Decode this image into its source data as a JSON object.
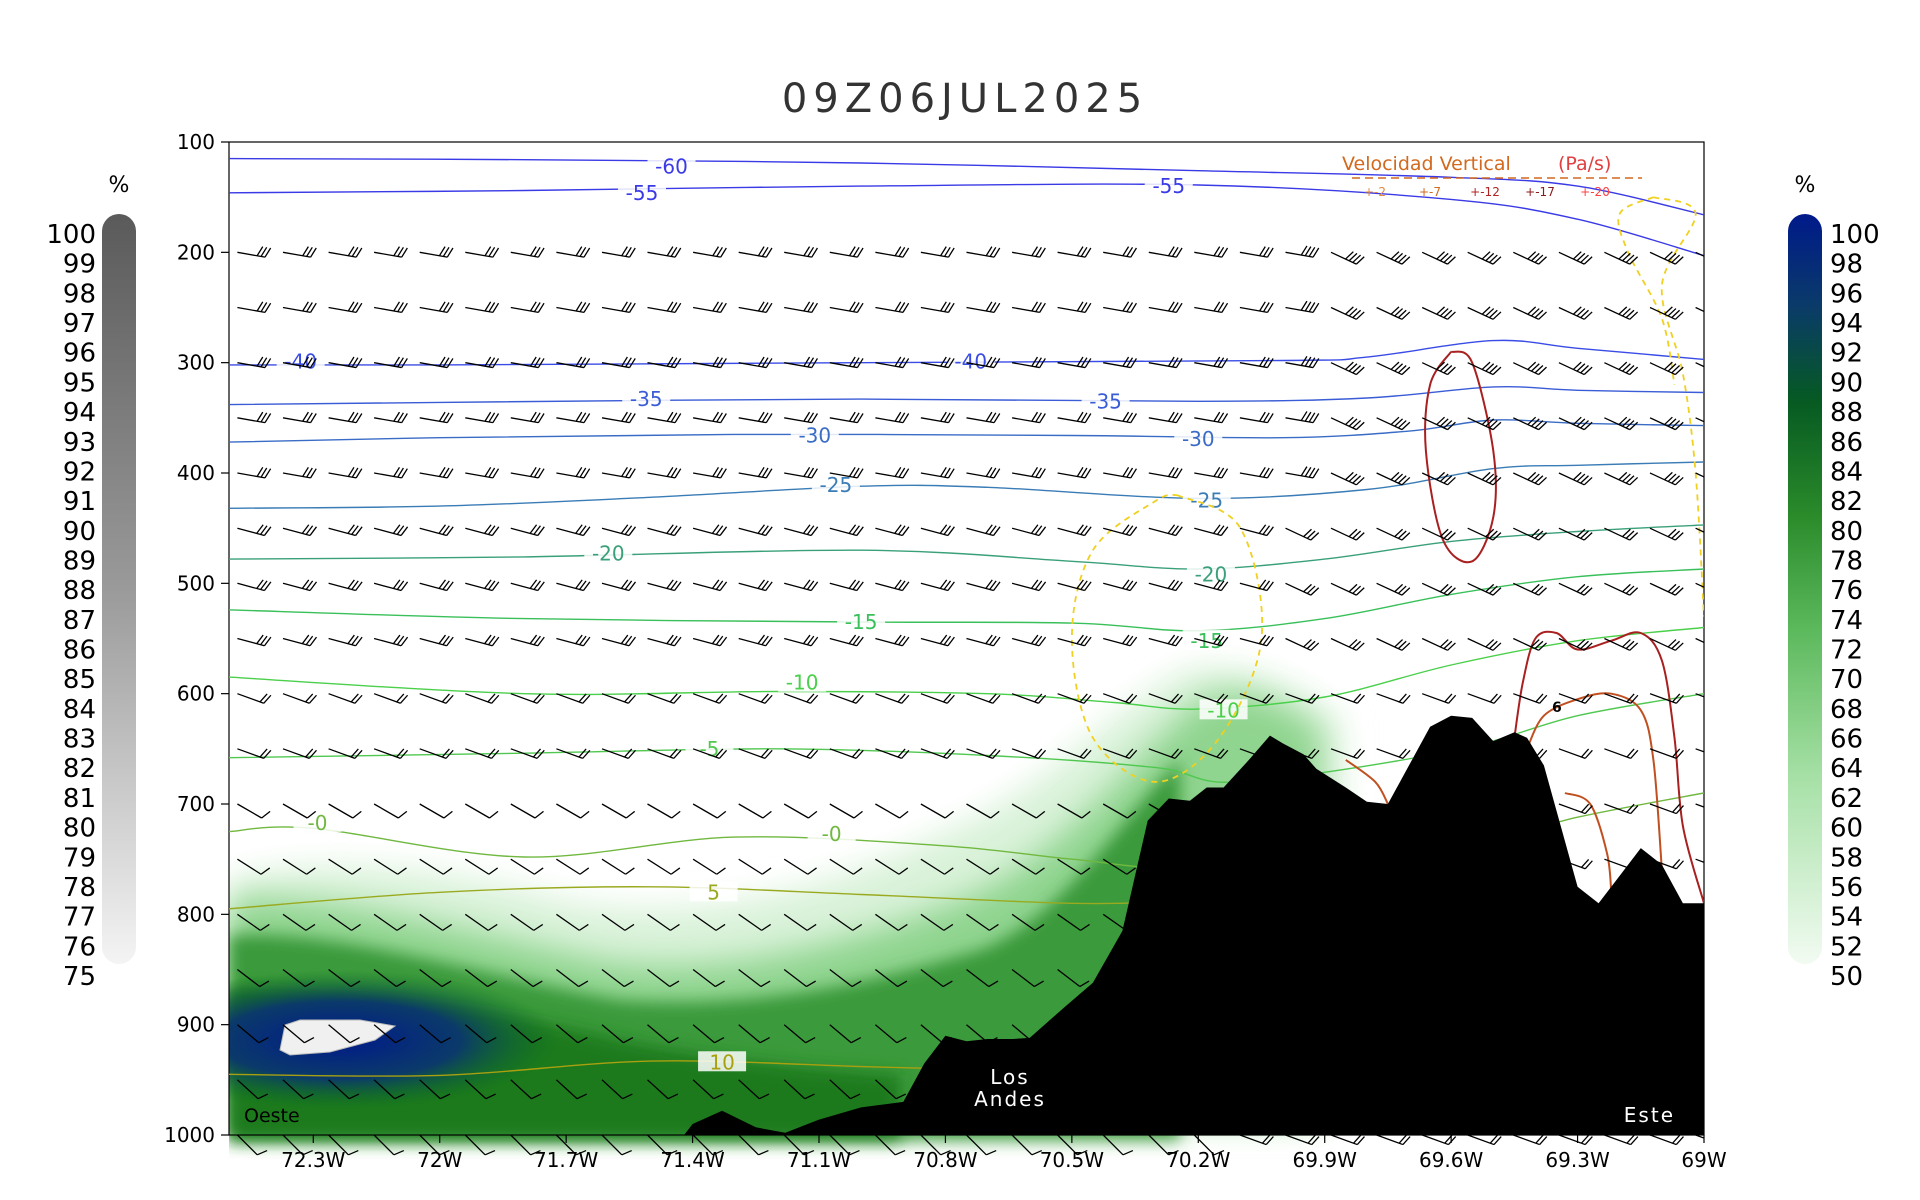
{
  "chart_data": {
    "type": "cross-section",
    "title": "09Z06JUL2025",
    "y_axis": {
      "ticks": [
        "100",
        "200",
        "300",
        "400",
        "500",
        "600",
        "700",
        "800",
        "900",
        "1000"
      ],
      "range": [
        100,
        1000
      ],
      "inverted": true
    },
    "x_axis": {
      "ticks": [
        "72.3W",
        "72W",
        "71.7W",
        "71.4W",
        "71.1W",
        "70.8W",
        "70.5W",
        "70.2W",
        "69.9W",
        "69.6W",
        "69.3W",
        "69W"
      ],
      "range": [
        -72.5,
        -69
      ]
    },
    "left_colorbar": {
      "unit": "%",
      "labels": [
        "100",
        "99",
        "98",
        "97",
        "96",
        "95",
        "94",
        "93",
        "92",
        "91",
        "90",
        "89",
        "88",
        "87",
        "86",
        "85",
        "84",
        "83",
        "82",
        "81",
        "80",
        "79",
        "78",
        "77",
        "76",
        "75"
      ]
    },
    "right_colorbar": {
      "unit": "%",
      "labels": [
        "100",
        "98",
        "96",
        "94",
        "92",
        "90",
        "88",
        "86",
        "84",
        "82",
        "80",
        "78",
        "76",
        "74",
        "72",
        "70",
        "68",
        "66",
        "64",
        "62",
        "60",
        "58",
        "56",
        "54",
        "52",
        "50"
      ]
    },
    "legend": {
      "title": "Velocidad Vertical",
      "unit": "(Pa/s)",
      "entries": [
        "+-2",
        "+-7",
        "+-12",
        "+-17",
        "+-20"
      ],
      "colors": [
        "#e08a40",
        "#d2691e",
        "#b22222",
        "#8b1a1a",
        "#ff4040"
      ]
    },
    "temperature_isotherms": [
      {
        "label": "-60",
        "color": "#3a3ae6",
        "points": [
          [
            -72.5,
            115
          ],
          [
            -71.8,
            116
          ],
          [
            -71.0,
            119
          ],
          [
            -70.2,
            126
          ],
          [
            -69.6,
            132
          ],
          [
            -69.3,
            140
          ],
          [
            -69.0,
            166
          ]
        ],
        "labels_at": [
          [
            -71.45,
            123
          ]
        ]
      },
      {
        "label": "-55",
        "color": "#3a3ae6",
        "points": [
          [
            -72.5,
            146
          ],
          [
            -71.8,
            144
          ],
          [
            -71.0,
            140
          ],
          [
            -70.2,
            139
          ],
          [
            -69.6,
            152
          ],
          [
            -69.3,
            170
          ],
          [
            -69.0,
            203
          ]
        ],
        "labels_at": [
          [
            -71.52,
            147
          ],
          [
            -70.27,
            141
          ]
        ]
      },
      {
        "label": "-40",
        "color": "#3a4ce6",
        "points": [
          [
            -72.5,
            302
          ],
          [
            -72.0,
            302
          ],
          [
            -71.0,
            300
          ],
          [
            -70.0,
            298
          ],
          [
            -69.8,
            295
          ],
          [
            -69.5,
            280
          ],
          [
            -69.3,
            287
          ],
          [
            -69.0,
            297
          ]
        ],
        "labels_at": [
          [
            -72.33,
            300
          ],
          [
            -70.74,
            300
          ]
        ]
      },
      {
        "label": "-35",
        "color": "#3a5cd6",
        "points": [
          [
            -72.5,
            338
          ],
          [
            -72.0,
            336
          ],
          [
            -71.0,
            333
          ],
          [
            -70.2,
            335
          ],
          [
            -69.8,
            332
          ],
          [
            -69.5,
            322
          ],
          [
            -69.3,
            325
          ],
          [
            -69.0,
            327
          ]
        ],
        "labels_at": [
          [
            -71.51,
            334
          ],
          [
            -70.42,
            336
          ]
        ]
      },
      {
        "label": "-30",
        "color": "#3a6cc6",
        "points": [
          [
            -72.5,
            372
          ],
          [
            -72.0,
            368
          ],
          [
            -71.3,
            365
          ],
          [
            -70.5,
            366
          ],
          [
            -70.0,
            368
          ],
          [
            -69.7,
            362
          ],
          [
            -69.5,
            352
          ],
          [
            -69.3,
            355
          ],
          [
            -69.0,
            357
          ]
        ],
        "labels_at": [
          [
            -71.11,
            367
          ],
          [
            -70.2,
            370
          ]
        ]
      },
      {
        "label": "-25",
        "color": "#3a7cb6",
        "points": [
          [
            -72.5,
            432
          ],
          [
            -72.0,
            430
          ],
          [
            -71.5,
            422
          ],
          [
            -71.0,
            412
          ],
          [
            -70.7,
            413
          ],
          [
            -70.2,
            423
          ],
          [
            -69.8,
            415
          ],
          [
            -69.5,
            396
          ],
          [
            -69.3,
            393
          ],
          [
            -69.0,
            390
          ]
        ],
        "labels_at": [
          [
            -71.06,
            412
          ],
          [
            -70.18,
            426
          ]
        ]
      },
      {
        "label": "-20",
        "color": "#3aa07a",
        "points": [
          [
            -72.5,
            478
          ],
          [
            -71.8,
            476
          ],
          [
            -71.0,
            470
          ],
          [
            -70.5,
            480
          ],
          [
            -70.2,
            487
          ],
          [
            -69.9,
            478
          ],
          [
            -69.6,
            462
          ],
          [
            -69.3,
            453
          ],
          [
            -69.0,
            447
          ]
        ],
        "labels_at": [
          [
            -71.6,
            474
          ],
          [
            -70.17,
            493
          ]
        ]
      },
      {
        "label": "-15",
        "color": "#3ac05a",
        "points": [
          [
            -72.5,
            524
          ],
          [
            -71.8,
            532
          ],
          [
            -71.0,
            535
          ],
          [
            -70.5,
            536
          ],
          [
            -70.2,
            543
          ],
          [
            -69.9,
            532
          ],
          [
            -69.6,
            510
          ],
          [
            -69.3,
            494
          ],
          [
            -69.0,
            487
          ]
        ],
        "labels_at": [
          [
            -71.0,
            536
          ],
          [
            -70.18,
            553
          ]
        ]
      },
      {
        "label": "-10",
        "color": "#4ad04a",
        "points": [
          [
            -72.5,
            585
          ],
          [
            -71.8,
            600
          ],
          [
            -71.2,
            598
          ],
          [
            -70.7,
            600
          ],
          [
            -70.4,
            608
          ],
          [
            -70.2,
            614
          ],
          [
            -69.9,
            603
          ],
          [
            -69.6,
            574
          ],
          [
            -69.3,
            552
          ],
          [
            -69.0,
            540
          ]
        ],
        "labels_at": [
          [
            -71.14,
            591
          ],
          [
            -70.14,
            616
          ]
        ]
      },
      {
        "label": "-5",
        "color": "#50c850",
        "points": [
          [
            -72.5,
            658
          ],
          [
            -71.8,
            654
          ],
          [
            -71.2,
            650
          ],
          [
            -70.7,
            656
          ],
          [
            -70.3,
            667
          ],
          [
            -70.1,
            680
          ],
          [
            -69.6,
            652
          ],
          [
            -69.3,
            620
          ],
          [
            -69.0,
            600
          ]
        ],
        "labels_at": [
          [
            -71.36,
            651
          ]
        ]
      },
      {
        "label": "-0",
        "color": "#70b840",
        "points": [
          [
            -72.5,
            725
          ],
          [
            -72.3,
            722
          ],
          [
            -71.8,
            748
          ],
          [
            -71.3,
            730
          ],
          [
            -70.8,
            738
          ],
          [
            -70.5,
            750
          ],
          [
            -70.2,
            758
          ],
          [
            -69.6,
            740
          ],
          [
            -69.3,
            712
          ],
          [
            -69.0,
            690
          ]
        ],
        "labels_at": [
          [
            -72.29,
            718
          ],
          [
            -71.07,
            728
          ]
        ]
      },
      {
        "label": "5",
        "color": "#9aaa20",
        "points": [
          [
            -72.5,
            795
          ],
          [
            -72.0,
            780
          ],
          [
            -71.5,
            775
          ],
          [
            -71.0,
            782
          ],
          [
            -70.5,
            790
          ],
          [
            -70.2,
            788
          ]
        ],
        "labels_at": [
          [
            -71.35,
            781
          ]
        ]
      },
      {
        "label": "10",
        "color": "#a8a010",
        "points": [
          [
            -72.5,
            945
          ],
          [
            -72.0,
            946
          ],
          [
            -71.5,
            933
          ],
          [
            -71.0,
            938
          ],
          [
            -70.8,
            940
          ]
        ],
        "labels_at": [
          [
            -71.33,
            935
          ]
        ]
      }
    ],
    "vertical_velocity_contours": [
      {
        "label": "+-2",
        "color": "#f0d020",
        "dashed": true,
        "points": [
          [
            -70.25,
            420
          ],
          [
            -70.1,
            450
          ],
          [
            -70.05,
            550
          ],
          [
            -70.15,
            640
          ],
          [
            -70.3,
            680
          ],
          [
            -70.45,
            640
          ],
          [
            -70.5,
            550
          ],
          [
            -70.45,
            470
          ],
          [
            -70.3,
            425
          ],
          [
            -70.25,
            420
          ]
        ]
      },
      {
        "label": "+-2",
        "color": "#f0d020",
        "dashed": true,
        "points": [
          [
            -69.12,
            150
          ],
          [
            -69.02,
            165
          ],
          [
            -69.1,
            230
          ],
          [
            -69.05,
            310
          ],
          [
            -69.02,
            400
          ],
          [
            -69.0,
            530
          ]
        ]
      },
      {
        "label": "+-2",
        "color": "#f0d020",
        "dashed": true,
        "points": [
          [
            -69.12,
            150
          ],
          [
            -69.2,
            165
          ],
          [
            -69.18,
            200
          ],
          [
            -69.1,
            260
          ],
          [
            -69.07,
            320
          ]
        ]
      },
      {
        "label": "+-12",
        "color": "#a82020",
        "dashed": false,
        "points": [
          [
            -69.6,
            290
          ],
          [
            -69.55,
            300
          ],
          [
            -69.5,
            380
          ],
          [
            -69.5,
            440
          ],
          [
            -69.55,
            480
          ],
          [
            -69.62,
            460
          ],
          [
            -69.66,
            380
          ],
          [
            -69.65,
            320
          ],
          [
            -69.6,
            290
          ]
        ]
      },
      {
        "label": "+-12",
        "color": "#a82020",
        "dashed": false,
        "points": [
          [
            -69.45,
            640
          ],
          [
            -69.43,
            590
          ],
          [
            -69.4,
            550
          ],
          [
            -69.35,
            545
          ],
          [
            -69.3,
            560
          ],
          [
            -69.22,
            552
          ],
          [
            -69.15,
            545
          ],
          [
            -69.1,
            570
          ],
          [
            -69.07,
            640
          ],
          [
            -69.05,
            720
          ],
          [
            -69.0,
            790
          ]
        ]
      },
      {
        "label": "+-7",
        "color": "#c05020",
        "dashed": false,
        "points": [
          [
            -69.42,
            650
          ],
          [
            -69.38,
            620
          ],
          [
            -69.3,
            605
          ],
          [
            -69.22,
            600
          ],
          [
            -69.15,
            615
          ],
          [
            -69.12,
            660
          ],
          [
            -69.1,
            760
          ]
        ]
      },
      {
        "label": "+-7",
        "color": "#c05020",
        "dashed": false,
        "points": [
          [
            -69.33,
            690
          ],
          [
            -69.27,
            700
          ],
          [
            -69.23,
            745
          ],
          [
            -69.22,
            780
          ]
        ]
      },
      {
        "label": "+-7",
        "color": "#c05020",
        "dashed": false,
        "points": [
          [
            -69.85,
            660
          ],
          [
            -69.78,
            680
          ],
          [
            -69.75,
            700
          ]
        ]
      }
    ],
    "contour_label": "6",
    "terrain": [
      [
        -71.42,
        1000
      ],
      [
        -71.4,
        990
      ],
      [
        -71.33,
        978
      ],
      [
        -71.25,
        993
      ],
      [
        -71.18,
        998
      ],
      [
        -71.1,
        986
      ],
      [
        -71.0,
        975
      ],
      [
        -70.9,
        970
      ],
      [
        -70.85,
        935
      ],
      [
        -70.8,
        910
      ],
      [
        -70.75,
        915
      ],
      [
        -70.7,
        913
      ],
      [
        -70.64,
        913
      ],
      [
        -70.6,
        912
      ],
      [
        -70.52,
        885
      ],
      [
        -70.45,
        862
      ],
      [
        -70.38,
        815
      ],
      [
        -70.32,
        715
      ],
      [
        -70.27,
        695
      ],
      [
        -70.22,
        697
      ],
      [
        -70.18,
        685
      ],
      [
        -70.14,
        685
      ],
      [
        -70.08,
        660
      ],
      [
        -70.03,
        638
      ],
      [
        -70.0,
        645
      ],
      [
        -69.95,
        655
      ],
      [
        -69.92,
        668
      ],
      [
        -69.85,
        685
      ],
      [
        -69.8,
        698
      ],
      [
        -69.75,
        700
      ],
      [
        -69.7,
        665
      ],
      [
        -69.65,
        630
      ],
      [
        -69.6,
        620
      ],
      [
        -69.55,
        622
      ],
      [
        -69.5,
        643
      ],
      [
        -69.45,
        635
      ],
      [
        -69.42,
        640
      ],
      [
        -69.38,
        665
      ],
      [
        -69.3,
        775
      ],
      [
        -69.25,
        790
      ],
      [
        -69.2,
        765
      ],
      [
        -69.15,
        740
      ],
      [
        -69.1,
        755
      ],
      [
        -69.05,
        790
      ],
      [
        -69.0,
        790
      ],
      [
        -69.0,
        1000
      ]
    ],
    "terrain_label": [
      "Los",
      "Andes"
    ],
    "side_labels": [
      "Oeste",
      "Este"
    ]
  }
}
